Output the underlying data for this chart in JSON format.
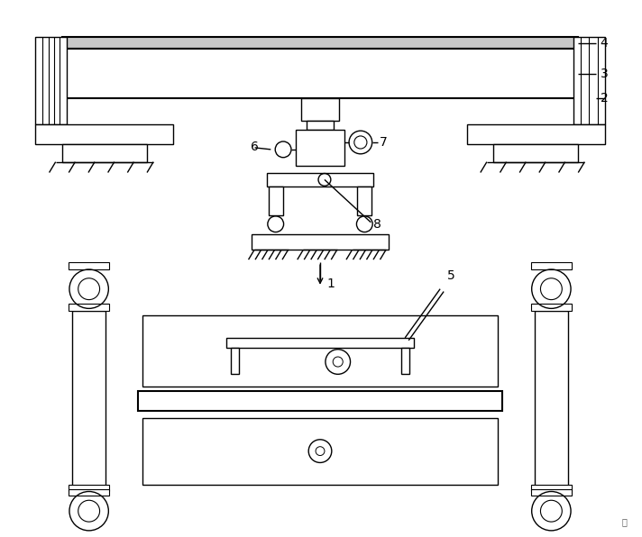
{
  "bg_color": "#ffffff",
  "line_color": "#000000",
  "fig_width": 7.12,
  "fig_height": 5.96
}
